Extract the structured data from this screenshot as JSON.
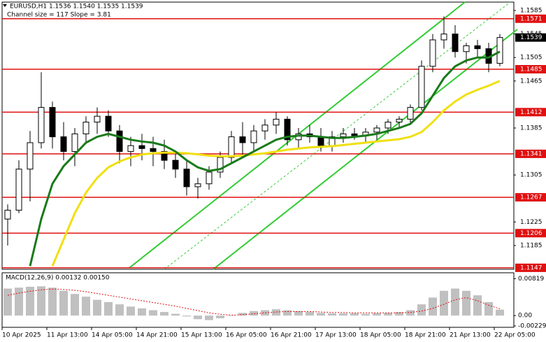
{
  "chart_data": [
    {
      "type": "candlestick",
      "title": "EURUSD,H1  1.1536 1.1540 1.1535 1.1539",
      "subtitle": "Channel size = 117 Slope = 3.81",
      "categories": [
        "10 Apr 2025",
        null,
        null,
        null,
        "11 Apr 13:00",
        null,
        null,
        null,
        "14 Apr 05:00",
        null,
        null,
        null,
        "14 Apr 21:00",
        null,
        null,
        null,
        "15 Apr 13:00",
        null,
        null,
        null,
        "16 Apr 05:00",
        null,
        null,
        null,
        "16 Apr 21:00",
        null,
        null,
        null,
        "17 Apr 13:00",
        null,
        null,
        null,
        "18 Apr 05:00",
        null,
        null,
        null,
        "18 Apr 21:00",
        null,
        null,
        null,
        "21 Apr 13:00",
        null,
        null,
        null,
        "22 Apr 05:00"
      ],
      "open": [
        1.123,
        1.1245,
        1.1315,
        1.136,
        1.142,
        1.137,
        1.1345,
        1.1375,
        1.1395,
        1.1405,
        1.138,
        1.1345,
        1.1355,
        1.135,
        1.1345,
        1.133,
        1.1315,
        1.1285,
        1.129,
        1.131,
        1.1335,
        1.137,
        1.136,
        1.138,
        1.139,
        1.14,
        1.1365,
        1.1375,
        1.137,
        1.1355,
        1.137,
        1.1375,
        1.1372,
        1.1378,
        1.1385,
        1.1395,
        1.14,
        1.142,
        1.149,
        1.1535,
        1.1545,
        1.1515,
        1.1525,
        1.152,
        1.1495
      ],
      "high": [
        1.1255,
        1.133,
        1.138,
        1.148,
        1.143,
        1.1395,
        1.1385,
        1.1405,
        1.142,
        1.1415,
        1.139,
        1.137,
        1.1375,
        1.137,
        1.1365,
        1.1345,
        1.133,
        1.13,
        1.132,
        1.1345,
        1.138,
        1.1395,
        1.139,
        1.14,
        1.1412,
        1.1405,
        1.1385,
        1.139,
        1.1385,
        1.138,
        1.1385,
        1.1385,
        1.1385,
        1.139,
        1.14,
        1.1405,
        1.1425,
        1.15,
        1.1545,
        1.1575,
        1.156,
        1.153,
        1.1535,
        1.153,
        1.1545
      ],
      "low": [
        1.1185,
        1.124,
        1.126,
        1.135,
        1.135,
        1.133,
        1.132,
        1.136,
        1.1375,
        1.137,
        1.1325,
        1.132,
        1.133,
        1.132,
        1.1315,
        1.13,
        1.127,
        1.1265,
        1.128,
        1.13,
        1.1325,
        1.134,
        1.1345,
        1.1365,
        1.1375,
        1.1355,
        1.135,
        1.136,
        1.1345,
        1.1345,
        1.136,
        1.1365,
        1.136,
        1.1365,
        1.1375,
        1.1385,
        1.139,
        1.1415,
        1.148,
        1.152,
        1.1505,
        1.1495,
        1.1505,
        1.148,
        1.149
      ],
      "close": [
        1.1245,
        1.1315,
        1.136,
        1.142,
        1.137,
        1.1345,
        1.1375,
        1.1395,
        1.1405,
        1.138,
        1.1345,
        1.1355,
        1.135,
        1.1345,
        1.133,
        1.1315,
        1.1285,
        1.129,
        1.131,
        1.1335,
        1.137,
        1.136,
        1.138,
        1.139,
        1.14,
        1.1365,
        1.1375,
        1.137,
        1.1355,
        1.137,
        1.1375,
        1.1372,
        1.1378,
        1.1385,
        1.1395,
        1.14,
        1.142,
        1.149,
        1.1535,
        1.1545,
        1.1515,
        1.1525,
        1.152,
        1.1495,
        1.1539
      ],
      "series": [
        {
          "color": "#f0e010",
          "values": [
            null,
            null,
            null,
            null,
            1.115,
            1.1195,
            1.124,
            1.1275,
            1.13,
            1.1318,
            1.1328,
            1.1335,
            1.134,
            1.1342,
            1.1343,
            1.1343,
            1.1342,
            1.134,
            1.1338,
            1.1337,
            1.1337,
            1.1338,
            1.134,
            1.1342,
            1.1345,
            1.1348,
            1.135,
            1.1352,
            1.1353,
            1.1354,
            1.1356,
            1.1358,
            1.136,
            1.1362,
            1.1364,
            1.1366,
            1.137,
            1.1378,
            1.1395,
            1.1415,
            1.143,
            1.1442,
            1.145,
            1.1457,
            1.1465
          ]
        },
        {
          "color": "#1a7a1a",
          "values": [
            null,
            null,
            1.115,
            1.123,
            1.129,
            1.132,
            1.134,
            1.136,
            1.137,
            1.1375,
            1.137,
            1.1365,
            1.1362,
            1.136,
            1.1355,
            1.1345,
            1.133,
            1.1318,
            1.1312,
            1.1315,
            1.1325,
            1.1335,
            1.1345,
            1.1355,
            1.1365,
            1.137,
            1.1372,
            1.1372,
            1.137,
            1.1368,
            1.1368,
            1.137,
            1.1372,
            1.1375,
            1.138,
            1.1385,
            1.1392,
            1.141,
            1.144,
            1.147,
            1.149,
            1.15,
            1.1505,
            1.1505,
            1.1515
          ]
        }
      ],
      "levels": [
        1.1571,
        1.1485,
        1.1412,
        1.1341,
        1.1267,
        1.1206,
        1.1147
      ],
      "level_color": "#e01010",
      "current_price": 1.1539,
      "ylim": [
        1.11445,
        1.15993
      ],
      "yticks": [
        1.1585,
        1.1545,
        1.1505,
        1.1465,
        1.1385,
        1.1305,
        1.1225,
        1.1185
      ]
    },
    {
      "type": "macd",
      "title": "MACD(12,26,9) 0.00132 0.00150",
      "histogram": [
        0.006,
        0.0062,
        0.0064,
        0.0065,
        0.0062,
        0.0055,
        0.0048,
        0.0042,
        0.0035,
        0.003,
        0.0025,
        0.002,
        0.0016,
        0.0012,
        0.0008,
        0.0004,
        -0.0002,
        -0.0008,
        -0.001,
        -0.0006,
        0.0,
        0.0006,
        0.001,
        0.0012,
        0.0014,
        0.0012,
        0.001,
        0.0008,
        0.0006,
        0.0005,
        0.0005,
        0.0005,
        0.0004,
        0.0005,
        0.0006,
        0.0008,
        0.0012,
        0.0025,
        0.004,
        0.0055,
        0.006,
        0.0055,
        0.0045,
        0.003,
        0.00132
      ],
      "signal": [
        0.0045,
        0.005,
        0.0054,
        0.0057,
        0.0059,
        0.0058,
        0.0056,
        0.0053,
        0.0049,
        0.0045,
        0.0041,
        0.0037,
        0.0033,
        0.0029,
        0.0025,
        0.0021,
        0.0016,
        0.0011,
        0.0006,
        0.0003,
        0.0001,
        0.0002,
        0.0004,
        0.0006,
        0.0008,
        0.0009,
        0.0009,
        0.0009,
        0.0008,
        0.0007,
        0.0007,
        0.0006,
        0.0006,
        0.0006,
        0.0006,
        0.0006,
        0.0007,
        0.001,
        0.0016,
        0.0025,
        0.0035,
        0.004,
        0.0033,
        0.0023,
        0.0015
      ],
      "histogram_color": "#c0c0c0",
      "signal_color": "#e01010",
      "ylim": [
        -0.0026,
        0.0095
      ],
      "yticks": [
        0.00819,
        {
          "value": 0,
          "label": "0.00"
        },
        -0.00229
      ]
    }
  ]
}
